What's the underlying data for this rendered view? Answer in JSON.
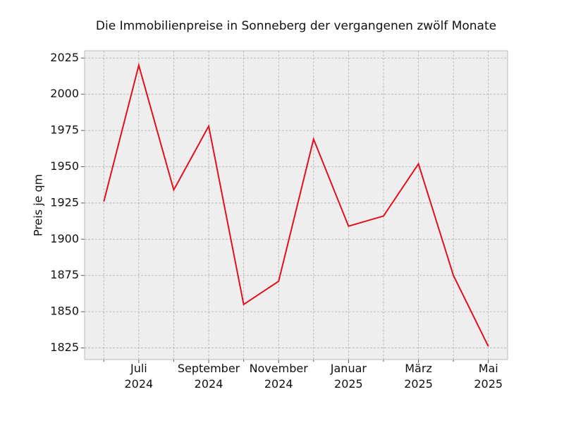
{
  "chart_data": {
    "type": "line",
    "title": "Die Immobilienpreise in Sonneberg der vergangenen zwölf Monate",
    "y_label": "Preis je qm",
    "categories": [
      null,
      "Juli\n2024",
      null,
      "September\n2024",
      null,
      "November\n2024",
      null,
      "Januar\n2025",
      null,
      "März\n2025",
      null,
      "Mai\n2025"
    ],
    "series": [
      {
        "name": "Preis",
        "color": "#e0101e",
        "values": [
          1926,
          2020,
          1934,
          1978,
          1855,
          1871,
          1969,
          1909,
          1916,
          1952,
          1875,
          1826
        ]
      }
    ],
    "ylim": [
      1817,
      2030
    ],
    "yticks": [
      1825,
      1850,
      1875,
      1900,
      1925,
      1950,
      1975,
      2000,
      2025
    ],
    "grid": true
  }
}
